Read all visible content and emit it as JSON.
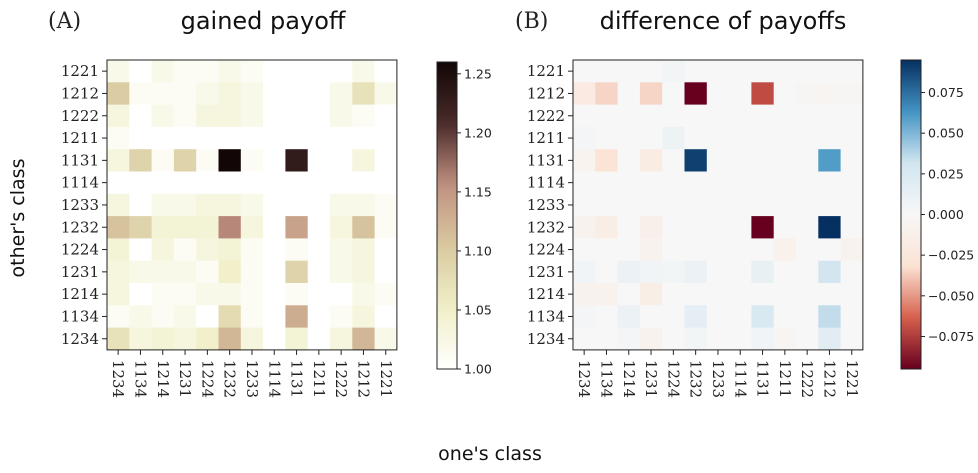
{
  "x_axis_title": "one's class",
  "y_axis_title": "other's class",
  "chart_data": [
    {
      "type": "heatmap",
      "panel_label": "(A)",
      "title": "gained payoff",
      "rows": [
        "1221",
        "1212",
        "1222",
        "1211",
        "1131",
        "1114",
        "1233",
        "1232",
        "1224",
        "1231",
        "1214",
        "1134",
        "1234"
      ],
      "cols": [
        "1234",
        "1134",
        "1214",
        "1231",
        "1224",
        "1232",
        "1233",
        "1114",
        "1131",
        "1211",
        "1222",
        "1212",
        "1221"
      ],
      "colormap": [
        "#ffffff",
        "#f0efc8",
        "#d9c9a0",
        "#c09080",
        "#4a2a2a",
        "#120606"
      ],
      "vmin": 1.0,
      "vmax": 1.26,
      "colorbar_ticks": [
        1.0,
        1.05,
        1.1,
        1.15,
        1.2,
        1.25
      ],
      "colorbar_tick_labels": [
        "1.00",
        "1.05",
        "1.10",
        "1.15",
        "1.20",
        "1.25"
      ],
      "values": [
        [
          1.02,
          1.0,
          1.02,
          1.01,
          1.01,
          1.02,
          1.01,
          1.0,
          1.0,
          1.0,
          1.0,
          1.02,
          1.0
        ],
        [
          1.1,
          1.01,
          1.01,
          1.01,
          1.02,
          1.03,
          1.02,
          1.0,
          1.0,
          1.0,
          1.02,
          1.07,
          1.02
        ],
        [
          1.03,
          1.0,
          1.02,
          1.01,
          1.03,
          1.03,
          1.02,
          1.0,
          1.0,
          1.0,
          1.02,
          1.01,
          1.0
        ],
        [
          1.01,
          1.0,
          1.0,
          1.0,
          1.0,
          1.0,
          1.0,
          1.0,
          1.0,
          1.0,
          1.0,
          1.0,
          1.0
        ],
        [
          1.03,
          1.09,
          1.01,
          1.09,
          1.01,
          1.26,
          1.01,
          1.0,
          1.23,
          1.0,
          1.0,
          1.03,
          1.0
        ],
        [
          1.0,
          1.0,
          1.0,
          1.0,
          1.0,
          1.0,
          1.0,
          1.0,
          1.0,
          1.0,
          1.0,
          1.0,
          1.0
        ],
        [
          1.03,
          1.0,
          1.02,
          1.02,
          1.03,
          1.03,
          1.02,
          1.0,
          1.0,
          1.0,
          1.02,
          1.02,
          1.01
        ],
        [
          1.11,
          1.09,
          1.04,
          1.04,
          1.04,
          1.16,
          1.03,
          1.0,
          1.14,
          1.0,
          1.03,
          1.11,
          1.01
        ],
        [
          1.04,
          1.0,
          1.03,
          1.01,
          1.03,
          1.04,
          1.01,
          1.0,
          1.01,
          1.0,
          1.02,
          1.03,
          1.0
        ],
        [
          1.03,
          1.02,
          1.02,
          1.02,
          1.01,
          1.05,
          1.01,
          1.0,
          1.09,
          1.0,
          1.02,
          1.03,
          1.0
        ],
        [
          1.03,
          1.0,
          1.01,
          1.01,
          1.02,
          1.02,
          1.01,
          1.0,
          1.01,
          1.0,
          1.0,
          1.02,
          1.01
        ],
        [
          1.01,
          1.02,
          1.01,
          1.02,
          1.0,
          1.08,
          1.01,
          1.0,
          1.13,
          1.0,
          1.01,
          1.03,
          1.0
        ],
        [
          1.07,
          1.03,
          1.04,
          1.03,
          1.05,
          1.12,
          1.03,
          1.0,
          1.04,
          1.0,
          1.03,
          1.12,
          1.02
        ]
      ]
    },
    {
      "type": "heatmap",
      "panel_label": "(B)",
      "title": "difference of payoffs",
      "rows": [
        "1221",
        "1212",
        "1222",
        "1211",
        "1131",
        "1114",
        "1233",
        "1232",
        "1224",
        "1231",
        "1214",
        "1134",
        "1234"
      ],
      "cols": [
        "1234",
        "1134",
        "1214",
        "1231",
        "1224",
        "1232",
        "1233",
        "1114",
        "1131",
        "1211",
        "1222",
        "1212",
        "1221"
      ],
      "colormap": [
        "#67001f",
        "#d6604d",
        "#fbe3d4",
        "#f7f7f7",
        "#d1e5f0",
        "#4393c3",
        "#053061"
      ],
      "vmin": -0.095,
      "vmax": 0.095,
      "colorbar_ticks": [
        -0.075,
        -0.05,
        -0.025,
        0.0,
        0.025,
        0.05,
        0.075
      ],
      "colorbar_tick_labels": [
        "−0.075",
        "−0.050",
        "−0.025",
        "0.000",
        "0.025",
        "0.050",
        "0.075"
      ],
      "values": [
        [
          0.0,
          0.0,
          0.0,
          0.0,
          0.004,
          0.0,
          0.0,
          0.0,
          0.0,
          0.0,
          0.0,
          0.0,
          0.0
        ],
        [
          -0.02,
          -0.035,
          0.0,
          -0.035,
          0.0,
          -0.095,
          0.0,
          0.0,
          -0.07,
          0.0,
          -0.003,
          -0.005,
          -0.003
        ],
        [
          0.0,
          0.0,
          0.0,
          0.0,
          0.0,
          0.0,
          0.0,
          0.0,
          0.0,
          0.0,
          0.0,
          0.0,
          0.0
        ],
        [
          0.003,
          0.0,
          0.0,
          0.0,
          0.008,
          0.0,
          0.0,
          0.0,
          0.0,
          0.0,
          0.0,
          0.0,
          0.0
        ],
        [
          -0.007,
          -0.03,
          0.0,
          -0.018,
          0.0,
          0.09,
          0.0,
          0.0,
          0.0,
          0.0,
          0.0,
          0.06,
          0.0
        ],
        [
          0.0,
          0.0,
          0.0,
          0.0,
          0.0,
          0.0,
          0.0,
          0.0,
          0.0,
          0.0,
          0.0,
          0.0,
          0.0
        ],
        [
          0.0,
          0.0,
          0.0,
          0.0,
          0.0,
          0.0,
          0.0,
          0.0,
          0.0,
          0.0,
          0.0,
          0.0,
          0.0
        ],
        [
          -0.008,
          -0.015,
          0.0,
          -0.012,
          0.0,
          0.0,
          0.0,
          0.0,
          -0.095,
          0.0,
          0.0,
          0.095,
          0.0
        ],
        [
          0.0,
          0.0,
          0.0,
          -0.008,
          0.0,
          0.0,
          0.0,
          0.0,
          0.0,
          -0.01,
          0.0,
          0.0,
          -0.008
        ],
        [
          0.006,
          0.0,
          0.01,
          0.006,
          0.004,
          0.01,
          0.0,
          0.0,
          0.012,
          0.0,
          0.0,
          0.03,
          0.0
        ],
        [
          -0.008,
          -0.01,
          0.0,
          -0.015,
          0.0,
          0.0,
          0.0,
          0.0,
          0.0,
          0.0,
          0.0,
          0.0,
          0.0
        ],
        [
          0.003,
          0.0,
          0.01,
          0.0,
          0.0,
          0.015,
          0.0,
          0.0,
          0.025,
          0.0,
          0.0,
          0.035,
          0.0
        ],
        [
          0.0,
          0.0,
          0.003,
          -0.008,
          0.0,
          0.004,
          0.0,
          0.0,
          0.006,
          -0.005,
          0.0,
          0.018,
          0.0
        ]
      ]
    }
  ]
}
